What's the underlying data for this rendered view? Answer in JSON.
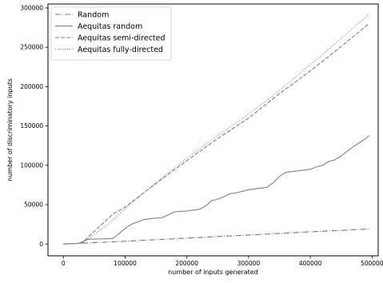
{
  "chart_data": {
    "type": "line",
    "title": "",
    "xlabel": "number of inputs generated",
    "ylabel": "number of discriminatory inputs",
    "xlim": [
      -25000,
      510000
    ],
    "ylim": [
      -15000,
      305000
    ],
    "grid": false,
    "legend_position": "top-left",
    "x_ticks": [
      0,
      100000,
      200000,
      300000,
      400000,
      500000
    ],
    "x_tick_labels": [
      "0",
      "100000",
      "200000",
      "300000",
      "400000",
      "500000"
    ],
    "y_ticks": [
      0,
      50000,
      100000,
      150000,
      200000,
      250000,
      300000
    ],
    "y_tick_labels": [
      "0",
      "50000",
      "100000",
      "150000",
      "200000",
      "250000",
      "300000"
    ],
    "series": [
      {
        "name": "Random",
        "style": "dashdot",
        "color": "#777777",
        "x": [
          0,
          30000,
          100000,
          200000,
          300000,
          400000,
          495000
        ],
        "y": [
          0,
          1000,
          3500,
          7500,
          11500,
          15500,
          19000
        ]
      },
      {
        "name": "Aequitas random",
        "style": "solid",
        "color": "#808080",
        "x": [
          0,
          25000,
          40000,
          80000,
          90000,
          100000,
          110000,
          130000,
          150000,
          160000,
          170000,
          180000,
          200000,
          210000,
          220000,
          230000,
          240000,
          250000,
          260000,
          270000,
          280000,
          290000,
          300000,
          310000,
          320000,
          330000,
          340000,
          350000,
          360000,
          370000,
          380000,
          390000,
          400000,
          410000,
          420000,
          430000,
          440000,
          450000,
          460000,
          470000,
          480000,
          490000,
          495000
        ],
        "y": [
          0,
          1000,
          6000,
          7000,
          13000,
          20000,
          25000,
          31000,
          33000,
          33500,
          37000,
          41000,
          42000,
          43000,
          44000,
          48000,
          55000,
          57000,
          60000,
          64000,
          65000,
          67000,
          69000,
          70000,
          71000,
          72000,
          78000,
          86000,
          91000,
          92000,
          93000,
          94000,
          95000,
          98000,
          100000,
          105000,
          107000,
          112000,
          118000,
          124000,
          129000,
          134000,
          138000
        ]
      },
      {
        "name": "Aequitas semi-directed",
        "style": "dashed",
        "color": "#808080",
        "x": [
          0,
          30000,
          50000,
          80000,
          100000,
          150000,
          200000,
          250000,
          300000,
          350000,
          400000,
          450000,
          495000
        ],
        "y": [
          0,
          1000,
          16000,
          38000,
          47000,
          77000,
          106000,
          134000,
          160000,
          191000,
          220000,
          251000,
          280000
        ]
      },
      {
        "name": "Aequitas fully-directed",
        "style": "dotted",
        "color": "#808080",
        "x": [
          0,
          30000,
          50000,
          80000,
          100000,
          150000,
          200000,
          250000,
          300000,
          350000,
          400000,
          450000,
          495000
        ],
        "y": [
          0,
          1000,
          12000,
          30000,
          45000,
          78000,
          109000,
          138000,
          165000,
          195000,
          228000,
          261000,
          292000
        ]
      }
    ]
  }
}
